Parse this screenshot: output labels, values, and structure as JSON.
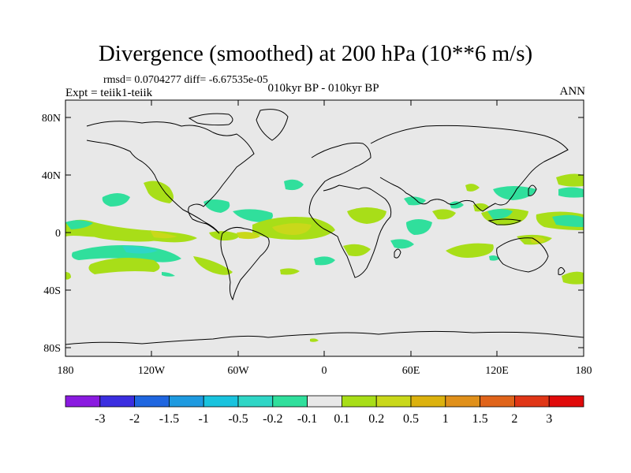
{
  "title": "Divergence (smoothed) at 200 hPa (10**6 m/s)",
  "stats": "rmsd= 0.0704277 diff= -6.67535e-05",
  "experiment": "Expt = teiik1-teiik",
  "period": "010kyr BP - 010kyr BP",
  "season": "ANN",
  "lat_labels": [
    "80N",
    "40N",
    "0",
    "40S",
    "80S"
  ],
  "lon_labels": [
    "180",
    "120W",
    "60W",
    "0",
    "60E",
    "120E",
    "180"
  ],
  "colorbar": {
    "labels": [
      "-3",
      "-2",
      "-1.5",
      "-1",
      "-0.5",
      "-0.2",
      "-0.1",
      "0.1",
      "0.2",
      "0.5",
      "1",
      "1.5",
      "2",
      "3"
    ],
    "colors": [
      "#8a1ae0",
      "#3b2ee0",
      "#1f66e0",
      "#1e9ae0",
      "#19c3de",
      "#2fd6c6",
      "#30df9c",
      "#e8e8e8",
      "#a8de18",
      "#c9d81a",
      "#dcb20e",
      "#e0901a",
      "#e0641a",
      "#e03616",
      "#e00a0a"
    ]
  },
  "palette": {
    "ocean": "#e8e8e8",
    "neg_light": "#30df9c",
    "neg_mid": "#2fd6c6",
    "pos_light": "#a8de18",
    "pos_mid": "#c9d81a",
    "pos_strong": "#dcb20e"
  }
}
